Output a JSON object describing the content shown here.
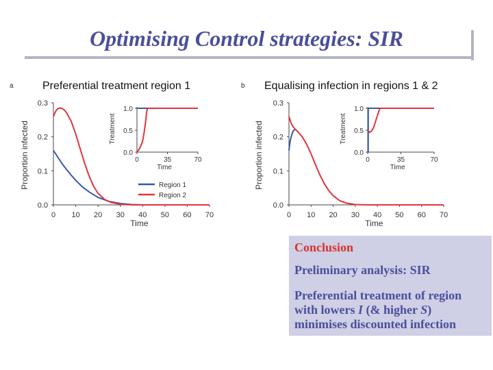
{
  "slide": {
    "title": "Optimising Control strategies: SIR"
  },
  "conclusion": {
    "heading": "Conclusion",
    "line1": "Preliminary analysis: SIR",
    "line2a": "Preferential treatment of region",
    "line3a": "with lowers ",
    "line3_i": "I",
    "line3b": " (& higher ",
    "line3_s": "S",
    "line3c": ")",
    "line4": "minimises discounted infection"
  },
  "colors": {
    "region1": "#3558a8",
    "region2": "#e0343a",
    "text_blue": "#4a4f9a",
    "text_red": "#d5342d",
    "box_bg": "#cfcfe6"
  },
  "chart_data": [
    {
      "type": "line",
      "panel_label": "a",
      "title": "Preferential treatment region 1",
      "xlabel": "Time",
      "ylabel": "Proportion infected",
      "xlim": [
        0,
        70
      ],
      "ylim": [
        0,
        0.3
      ],
      "xticks": [
        "0",
        "10",
        "20",
        "30",
        "40",
        "50",
        "60",
        "70"
      ],
      "yticks": [
        "0.0",
        "0.1",
        "0.2",
        "0.3"
      ],
      "legend": [
        "Region 1",
        "Region 2"
      ],
      "series": [
        {
          "name": "Region 1",
          "x": [
            0,
            2,
            4,
            6,
            8,
            10,
            13,
            16,
            20,
            25,
            30,
            35,
            40,
            70
          ],
          "y": [
            0.16,
            0.14,
            0.12,
            0.103,
            0.087,
            0.072,
            0.053,
            0.038,
            0.022,
            0.01,
            0.004,
            0.001,
            0.0,
            0.0
          ]
        },
        {
          "name": "Region 2",
          "x": [
            0,
            1,
            2,
            3,
            4,
            5,
            6,
            8,
            10,
            12,
            14,
            16,
            18,
            20,
            23,
            26,
            30,
            35,
            40,
            70
          ],
          "y": [
            0.26,
            0.275,
            0.283,
            0.285,
            0.283,
            0.278,
            0.27,
            0.245,
            0.208,
            0.165,
            0.122,
            0.085,
            0.055,
            0.034,
            0.016,
            0.007,
            0.002,
            0.0,
            0.0,
            0.0
          ]
        }
      ],
      "inset": {
        "ylabel": "Treatment",
        "xlabel": "Time",
        "xlim": [
          0,
          70
        ],
        "ylim": [
          0,
          1
        ],
        "xticks": [
          "0",
          "35",
          "70"
        ],
        "yticks": [
          "0.0",
          "0.5",
          "1.0"
        ],
        "series": [
          {
            "name": "Region 1",
            "x": [
              0,
              5,
              5,
              70
            ],
            "y": [
              1.0,
              1.0,
              1.0,
              1.0
            ]
          },
          {
            "name": "Region 2",
            "x": [
              0,
              2,
              4,
              6,
              7,
              8,
              9,
              10,
              11,
              12,
              70
            ],
            "y": [
              0.0,
              0.05,
              0.12,
              0.22,
              0.3,
              0.42,
              0.55,
              0.7,
              0.9,
              1.0,
              1.0
            ]
          }
        ]
      }
    },
    {
      "type": "line",
      "panel_label": "b",
      "title": "Equalising infection in regions 1 & 2",
      "xlabel": "Time",
      "ylabel": "Proportion infected",
      "xlim": [
        0,
        70
      ],
      "ylim": [
        0,
        0.3
      ],
      "xticks": [
        "0",
        "10",
        "20",
        "30",
        "40",
        "50",
        "60",
        "70"
      ],
      "yticks": [
        "0.0",
        "0.1",
        "0.2",
        "0.3"
      ],
      "series": [
        {
          "name": "Region 1",
          "x": [
            0,
            0.5,
            1,
            1.5,
            2,
            3
          ],
          "y": [
            0.16,
            0.185,
            0.2,
            0.21,
            0.218,
            0.222
          ]
        },
        {
          "name": "Region 2",
          "x": [
            0,
            1,
            2,
            4,
            6,
            8,
            10,
            12,
            14,
            16,
            18,
            20,
            23,
            26,
            30,
            35,
            40,
            70
          ],
          "y": [
            0.26,
            0.24,
            0.228,
            0.215,
            0.2,
            0.178,
            0.15,
            0.118,
            0.088,
            0.062,
            0.042,
            0.027,
            0.012,
            0.005,
            0.001,
            0.0,
            0.0,
            0.0
          ]
        }
      ],
      "inset": {
        "ylabel": "Treatment",
        "xlabel": "Time",
        "xlim": [
          0,
          70
        ],
        "ylim": [
          0,
          1
        ],
        "xticks": [
          "0",
          "35",
          "70"
        ],
        "yticks": [
          "0.0",
          "0.5",
          "1.0"
        ],
        "series": [
          {
            "name": "Region 1",
            "x": [
              0,
              0.5,
              0.6,
              70
            ],
            "y": [
              0.0,
              0.0,
              1.0,
              1.0
            ]
          },
          {
            "name": "Region 2",
            "x": [
              0,
              2,
              4,
              6,
              8,
              10,
              12,
              13,
              70
            ],
            "y": [
              0.5,
              0.45,
              0.48,
              0.55,
              0.68,
              0.82,
              0.95,
              1.0,
              1.0
            ]
          }
        ]
      }
    }
  ]
}
